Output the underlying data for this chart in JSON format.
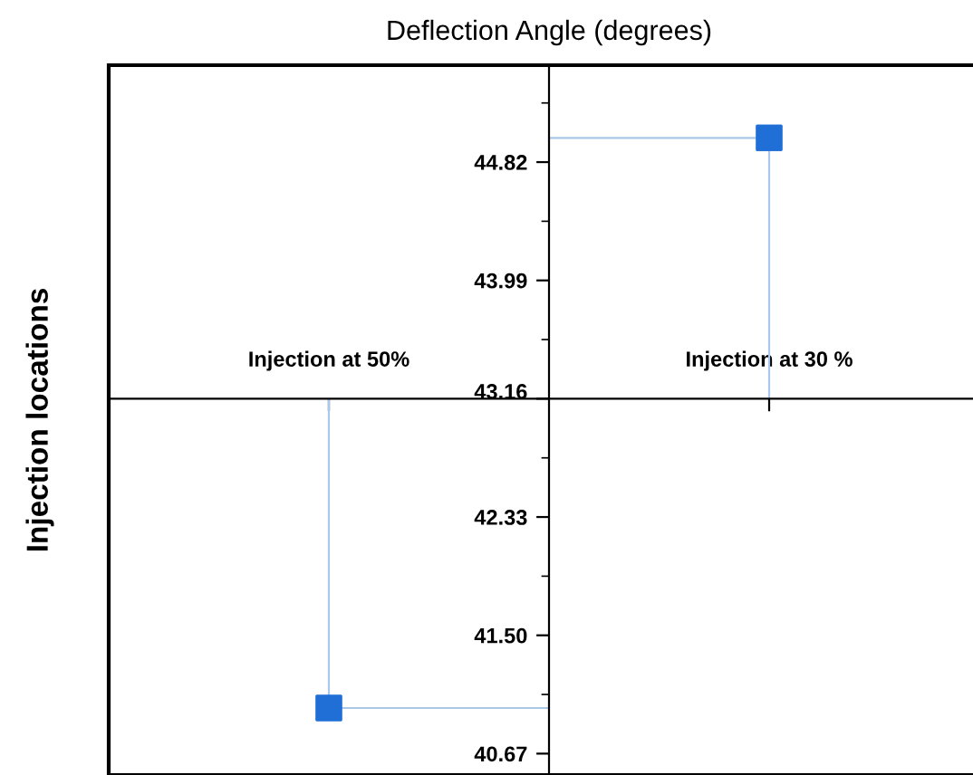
{
  "chart_data": {
    "type": "scatter",
    "title": "Deflection Angle (degrees)",
    "ylabel": "Injection locations",
    "categories": [
      "Injection at 50%",
      "Injection at 30 %"
    ],
    "series": [
      {
        "color": "#1f6fd6",
        "values": [
          40.99,
          44.99
        ],
        "errors": [
          [
            40.99,
            43.16
          ],
          [
            43.16,
            44.99
          ]
        ]
      }
    ],
    "ref_lines": [
      {
        "axis": "y",
        "value": 40.99,
        "color": "#a9c8e8"
      },
      {
        "axis": "y",
        "value": 44.99,
        "color": "#a9c8e8"
      }
    ],
    "marker": "square",
    "ylim": [
      40.52,
      45.5
    ],
    "yticks": [
      40.67,
      {
        "value": 41.5,
        "label": "41.50"
      },
      42.33,
      43.16,
      43.99,
      44.82
    ],
    "grid": false,
    "legend": false
  }
}
